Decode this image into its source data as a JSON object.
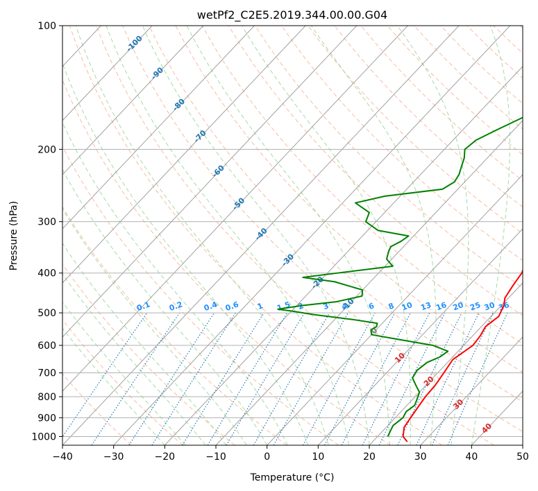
{
  "chart_data": {
    "type": "line",
    "title": "wetPf2_C2E5.2019.344.00.00.G04",
    "xlabel": "Temperature (°C)",
    "ylabel": "Pressure (hPa)",
    "xlim": [
      -40,
      50
    ],
    "ylim": [
      1050,
      100
    ],
    "y_scale": "log",
    "grid": true,
    "x_ticks": [
      "−40",
      "−30",
      "−20",
      "−10",
      "0",
      "10",
      "20",
      "30",
      "40",
      "50"
    ],
    "x_tick_values": [
      -40,
      -30,
      -20,
      -10,
      0,
      10,
      20,
      30,
      40,
      50
    ],
    "y_ticks": [
      "1000",
      "900",
      "800",
      "700",
      "600",
      "500",
      "400",
      "300",
      "200",
      "100"
    ],
    "y_tick_values": [
      1000,
      900,
      800,
      700,
      600,
      500,
      400,
      300,
      200,
      100
    ],
    "colors": {
      "temperature": "#ff0000",
      "dewpoint": "#008000",
      "isotherm": "#a0a0a0",
      "dry_adiabat": "#f4a582",
      "moist_adiabat": "#8fd18f",
      "mixing_ratio": "#1f77b4",
      "mixing_ratio_label": "#1e90ff",
      "isotherm_label_cold": "#1f77b4",
      "isotherm_label_zero": "#808080",
      "isotherm_label_warm": "#d62728"
    },
    "isotherm_labels": [
      {
        "label": "-100",
        "value": -100
      },
      {
        "label": "-90",
        "value": -90
      },
      {
        "label": "-80",
        "value": -80
      },
      {
        "label": "-70",
        "value": -70
      },
      {
        "label": "-60",
        "value": -60
      },
      {
        "label": "-50",
        "value": -50
      },
      {
        "label": "-40",
        "value": -40
      },
      {
        "label": "-30",
        "value": -30
      },
      {
        "label": "-20",
        "value": -20
      },
      {
        "label": "-10",
        "value": -10
      },
      {
        "label": "0",
        "value": 0
      },
      {
        "label": "10",
        "value": 10
      },
      {
        "label": "20",
        "value": 20
      },
      {
        "label": "30",
        "value": 30
      },
      {
        "label": "40",
        "value": 40
      }
    ],
    "mixing_ratio_labels": [
      {
        "label": "0.1",
        "value": 0.1
      },
      {
        "label": "0.2",
        "value": 0.2
      },
      {
        "label": "0.4",
        "value": 0.4
      },
      {
        "label": "0.6",
        "value": 0.6
      },
      {
        "label": "1",
        "value": 1
      },
      {
        "label": "1.5",
        "value": 1.5
      },
      {
        "label": "2",
        "value": 2
      },
      {
        "label": "3",
        "value": 3
      },
      {
        "label": "4",
        "value": 4
      },
      {
        "label": "6",
        "value": 6
      },
      {
        "label": "8",
        "value": 8
      },
      {
        "label": "10",
        "value": 10
      },
      {
        "label": "13",
        "value": 13
      },
      {
        "label": "16",
        "value": 16
      },
      {
        "label": "20",
        "value": 20
      },
      {
        "label": "25",
        "value": 25
      },
      {
        "label": "30",
        "value": 30
      },
      {
        "label": "36",
        "value": 36
      }
    ],
    "series": [
      {
        "key": "temperature",
        "points": [
          [
            1030,
            26.8
          ],
          [
            1000,
            25
          ],
          [
            950,
            23.5
          ],
          [
            900,
            23
          ],
          [
            850,
            22.5
          ],
          [
            800,
            22
          ],
          [
            750,
            21.8
          ],
          [
            700,
            21.2
          ],
          [
            650,
            20.5
          ],
          [
            600,
            21.8
          ],
          [
            570,
            21.5
          ],
          [
            540,
            20.8
          ],
          [
            510,
            21.5
          ],
          [
            480,
            20.5
          ],
          [
            460,
            19.3
          ],
          [
            430,
            18.6
          ],
          [
            400,
            18.0
          ],
          [
            380,
            17.0
          ],
          [
            350,
            14.5
          ],
          [
            320,
            13.0
          ],
          [
            300,
            12.0
          ],
          [
            280,
            10.5
          ],
          [
            260,
            8.0
          ],
          [
            240,
            6.0
          ],
          [
            220,
            4.5
          ],
          [
            200,
            3.0
          ],
          [
            180,
            1.0
          ],
          [
            160,
            -1.0
          ],
          [
            145,
            -2.5
          ],
          [
            140,
            -2.5
          ],
          [
            130,
            -2.0
          ],
          [
            120,
            -1.0
          ],
          [
            110,
            0.0
          ],
          [
            105,
            1.5
          ],
          [
            100,
            3.5
          ]
        ]
      },
      {
        "key": "dewpoint",
        "points": [
          [
            1000,
            22
          ],
          [
            970,
            21.5
          ],
          [
            940,
            21
          ],
          [
            900,
            21.5
          ],
          [
            870,
            21
          ],
          [
            840,
            21.5
          ],
          [
            810,
            20.8
          ],
          [
            780,
            20
          ],
          [
            750,
            18
          ],
          [
            720,
            16
          ],
          [
            690,
            15.5
          ],
          [
            660,
            16
          ],
          [
            640,
            17.5
          ],
          [
            620,
            18.0
          ],
          [
            600,
            14.0
          ],
          [
            580,
            6.0
          ],
          [
            565,
            0
          ],
          [
            550,
            -1.0
          ],
          [
            540,
            -0.5
          ],
          [
            530,
            -1.0
          ],
          [
            520,
            -6.0
          ],
          [
            505,
            -15.0
          ],
          [
            495,
            -20.0
          ],
          [
            490,
            -23.0
          ],
          [
            480,
            -19.0
          ],
          [
            470,
            -13.0
          ],
          [
            455,
            -9.0
          ],
          [
            440,
            -10.0
          ],
          [
            420,
            -17.0
          ],
          [
            410,
            -24.0
          ],
          [
            400,
            -18.0
          ],
          [
            385,
            -8.5
          ],
          [
            370,
            -11.0
          ],
          [
            355,
            -12.0
          ],
          [
            345,
            -12.5
          ],
          [
            335,
            -11.5
          ],
          [
            325,
            -11.0
          ],
          [
            315,
            -18.0
          ],
          [
            300,
            -22.0
          ],
          [
            285,
            -23.0
          ],
          [
            270,
            -27.5
          ],
          [
            260,
            -23.0
          ],
          [
            250,
            -13.0
          ],
          [
            240,
            -12.0
          ],
          [
            230,
            -12.5
          ],
          [
            220,
            -13.5
          ],
          [
            210,
            -14.5
          ],
          [
            200,
            -16.0
          ],
          [
            190,
            -15.5
          ],
          [
            180,
            -13.5
          ],
          [
            165,
            -10.0
          ],
          [
            150,
            -8.5
          ],
          [
            140,
            -8.5
          ],
          [
            130,
            -9.5
          ],
          [
            120,
            -10.5
          ],
          [
            112,
            -8.5
          ],
          [
            105,
            -5.5
          ],
          [
            100,
            -4.5
          ]
        ]
      }
    ]
  }
}
